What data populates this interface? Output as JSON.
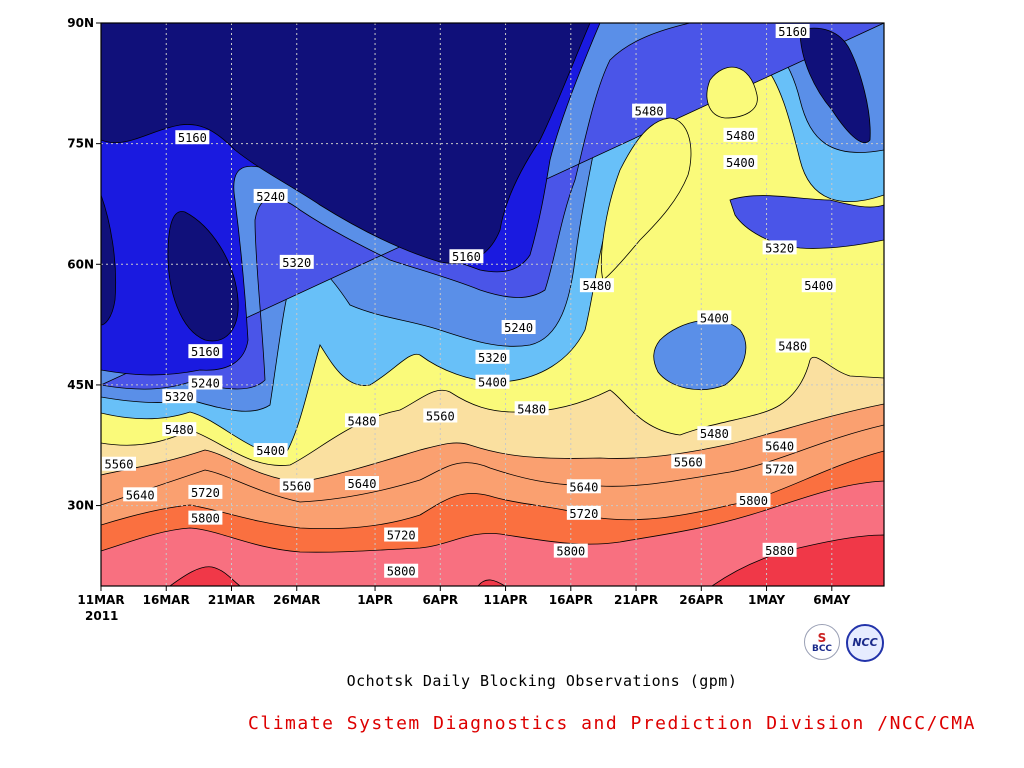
{
  "chart_data": {
    "type": "heatmap",
    "title": "Ochotsk Daily Blocking Observations (gpm)",
    "credit": "Climate System Diagnostics and Prediction Division /NCC/CMA",
    "credit_color": "#dd0000",
    "x_ticks": [
      "11MAR",
      "16MAR",
      "21MAR",
      "26MAR",
      "1APR",
      "6APR",
      "11APR",
      "16APR",
      "21APR",
      "26APR",
      "1MAY",
      "6MAY"
    ],
    "x_year_label": "2011",
    "x_range": [
      "11MAR2011",
      "10MAY2011"
    ],
    "y_ticks": [
      "30N",
      "45N",
      "60N",
      "75N",
      "90N"
    ],
    "y_range": [
      20,
      90
    ],
    "grid": true,
    "contour_levels": [
      5160,
      5240,
      5320,
      5400,
      5480,
      5560,
      5640,
      5720,
      5800,
      5880
    ],
    "fill_colors": [
      "#10107a",
      "#1a1ae0",
      "#4a55e8",
      "#5a8fe8",
      "#68c0f8",
      "#fafa7a",
      "#fae0a0",
      "#faa070",
      "#fa7040",
      "#f87080",
      "#f03848"
    ],
    "contour_labels": [
      {
        "text": "5160",
        "date": "18MAR",
        "lat": 75.8
      },
      {
        "text": "5240",
        "date": "24MAR",
        "lat": 68.5
      },
      {
        "text": "5320",
        "date": "26MAR",
        "lat": 60.3
      },
      {
        "text": "5160",
        "date": "8APR",
        "lat": 61.0
      },
      {
        "text": "5160",
        "date": "19MAR",
        "lat": 49.2
      },
      {
        "text": "5240",
        "date": "19MAR",
        "lat": 45.3
      },
      {
        "text": "5320",
        "date": "17MAR",
        "lat": 43.6
      },
      {
        "text": "5480",
        "date": "17MAR",
        "lat": 39.5
      },
      {
        "text": "5400",
        "date": "24MAR",
        "lat": 36.9
      },
      {
        "text": "5560",
        "date": "11MAR",
        "lat": 35.2
      },
      {
        "text": "5640",
        "date": "14MAR",
        "lat": 31.4
      },
      {
        "text": "5720",
        "date": "19MAR",
        "lat": 31.7
      },
      {
        "text": "5800",
        "date": "19MAR",
        "lat": 28.5
      },
      {
        "text": "5560",
        "date": "26MAR",
        "lat": 32.5
      },
      {
        "text": "5480",
        "date": "31MAR",
        "lat": 40.6
      },
      {
        "text": "5640",
        "date": "31MAR",
        "lat": 32.8
      },
      {
        "text": "5720",
        "date": "3APR",
        "lat": 26.4
      },
      {
        "text": "5800",
        "date": "3APR",
        "lat": 21.9
      },
      {
        "text": "5560",
        "date": "6APR",
        "lat": 41.2
      },
      {
        "text": "5240",
        "date": "12APR",
        "lat": 52.2
      },
      {
        "text": "5320",
        "date": "10APR",
        "lat": 48.5
      },
      {
        "text": "5400",
        "date": "10APR",
        "lat": 45.4
      },
      {
        "text": "5480",
        "date": "13APR",
        "lat": 42.1
      },
      {
        "text": "5640",
        "date": "17APR",
        "lat": 32.4
      },
      {
        "text": "5720",
        "date": "17APR",
        "lat": 29.1
      },
      {
        "text": "5800",
        "date": "16APR",
        "lat": 24.4
      },
      {
        "text": "5480",
        "date": "18APR",
        "lat": 57.4
      },
      {
        "text": "5480",
        "date": "22APR",
        "lat": 79.1
      },
      {
        "text": "5400",
        "date": "27APR",
        "lat": 53.4
      },
      {
        "text": "5480",
        "date": "27APR",
        "lat": 39.0
      },
      {
        "text": "5560",
        "date": "25APR",
        "lat": 35.5
      },
      {
        "text": "5480",
        "date": "29APR",
        "lat": 76.1
      },
      {
        "text": "5400",
        "date": "29APR",
        "lat": 72.7
      },
      {
        "text": "5160",
        "date": "3MAY",
        "lat": 89.6
      },
      {
        "text": "5320",
        "date": "2MAY",
        "lat": 62.1
      },
      {
        "text": "5400",
        "date": "5MAY",
        "lat": 57.4
      },
      {
        "text": "5480",
        "date": "3MAY",
        "lat": 49.9
      },
      {
        "text": "5640",
        "date": "2MAY",
        "lat": 37.5
      },
      {
        "text": "5720",
        "date": "2MAY",
        "lat": 34.6
      },
      {
        "text": "5800",
        "date": "30APR",
        "lat": 30.7
      },
      {
        "text": "5880",
        "date": "2MAY",
        "lat": 24.5
      }
    ]
  },
  "logos": {
    "bcc": {
      "text": "BCC",
      "mark": "S"
    },
    "ncc": {
      "text": "NCC"
    }
  }
}
